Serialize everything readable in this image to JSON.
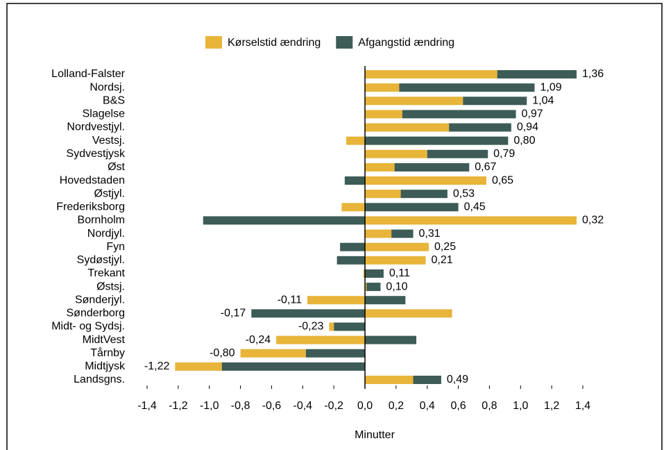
{
  "chart_data": {
    "type": "stacked-barh",
    "categories": [
      "Lolland-Falster",
      "Nordsj.",
      "B&S",
      "Slagelse",
      "Nordvestjyl.",
      "Vestsj.",
      "Sydvestjysk",
      "Øst",
      "Hovedstaden",
      "Østjyl.",
      "Frederiksborg",
      "Bornholm",
      "Nordjyl.",
      "Fyn",
      "Sydøstjyl.",
      "Trekant",
      "Østsj.",
      "Sønderjyl.",
      "Sønderborg",
      "Midt- og Sydsj.",
      "MidtVest",
      "Tårnby",
      "Midtjysk",
      "Landsgns."
    ],
    "series": [
      {
        "name": "Kørselstid ændring",
        "color": "#e8b53a",
        "values": [
          0.85,
          0.22,
          0.63,
          0.24,
          0.54,
          -0.12,
          0.4,
          0.19,
          0.78,
          0.23,
          -0.15,
          1.36,
          0.17,
          0.41,
          0.39,
          -0.01,
          0.01,
          -0.37,
          0.56,
          -0.03,
          -0.57,
          -0.42,
          -0.3,
          0.31
        ]
      },
      {
        "name": "Afgangstid ændring",
        "color": "#3d5c57",
        "values": [
          0.51,
          0.87,
          0.41,
          0.73,
          0.4,
          0.92,
          0.39,
          0.48,
          -0.13,
          0.3,
          0.6,
          -1.04,
          0.14,
          -0.16,
          -0.18,
          0.12,
          0.09,
          0.26,
          -0.73,
          -0.2,
          0.33,
          -0.38,
          -0.92,
          0.18
        ]
      }
    ],
    "totals": [
      1.36,
      1.09,
      1.04,
      0.97,
      0.94,
      0.8,
      0.79,
      0.67,
      0.65,
      0.53,
      0.45,
      0.32,
      0.31,
      0.25,
      0.21,
      0.11,
      0.1,
      -0.11,
      -0.17,
      -0.23,
      -0.24,
      -0.8,
      -1.22,
      0.49
    ],
    "value_labels": [
      "1,36",
      "1,09",
      "1,04",
      "0,97",
      "0,94",
      "0,80",
      "0,79",
      "0,67",
      "0,65",
      "0,53",
      "0,45",
      "0,32",
      "0,31",
      "0,25",
      "0,21",
      "0,11",
      "0,10",
      "-0,11",
      "-0,17",
      "-0,23",
      "-0,24",
      "-0,80",
      "-1,22",
      "0,49"
    ],
    "xlabel": "Minutter",
    "xlim": [
      -1.4,
      1.4
    ],
    "xticks": [
      {
        "value": -1.4,
        "label": "-1,4"
      },
      {
        "value": -1.2,
        "label": "-1,2"
      },
      {
        "value": -1.0,
        "label": "-1,0"
      },
      {
        "value": -0.8,
        "label": "-0,8"
      },
      {
        "value": -0.6,
        "label": "-0,6"
      },
      {
        "value": -0.4,
        "label": "-0,4"
      },
      {
        "value": -0.2,
        "label": "-0,2"
      },
      {
        "value": 0,
        "label": "0,0"
      },
      {
        "value": 0.2,
        "label": "0,2"
      },
      {
        "value": 0.4,
        "label": "0,4"
      },
      {
        "value": 0.6,
        "label": "0,6"
      },
      {
        "value": 0.8,
        "label": "0,8"
      },
      {
        "value": 1.0,
        "label": "1,0"
      },
      {
        "value": 1.2,
        "label": "1,2"
      },
      {
        "value": 1.4,
        "label": "1,4"
      }
    ],
    "legend": "top"
  }
}
